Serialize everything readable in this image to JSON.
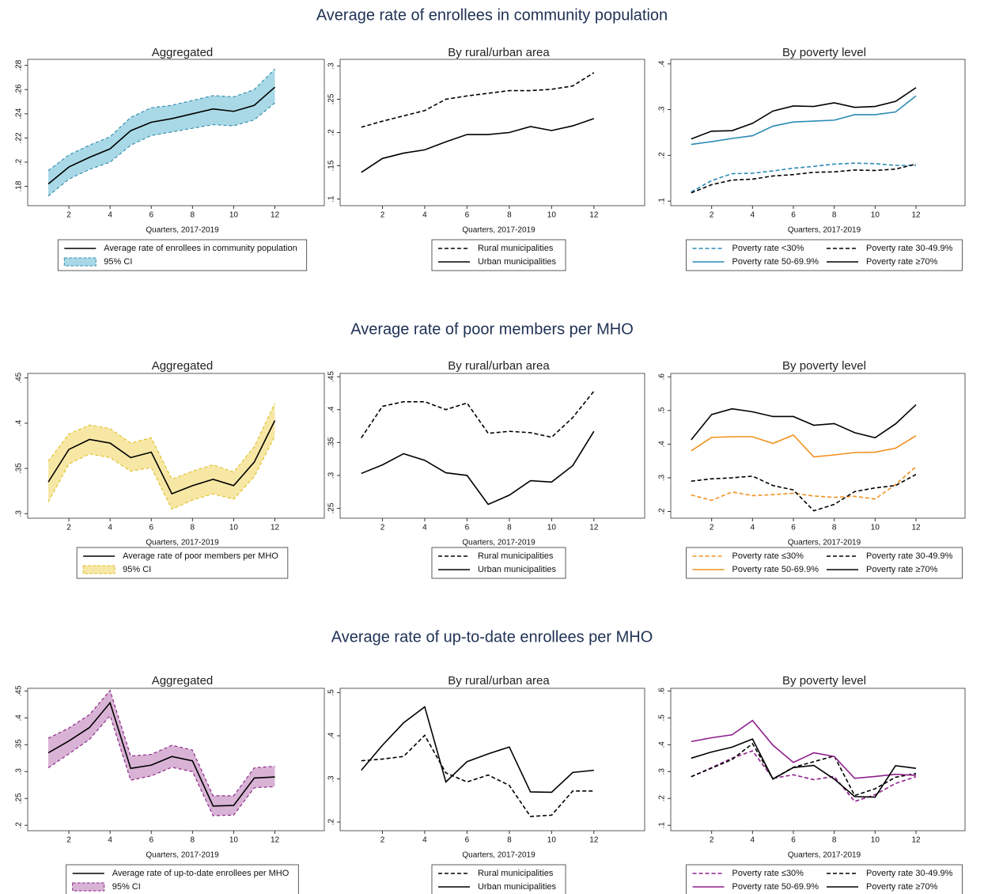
{
  "section_titles": [
    "Average rate of enrollees in community population",
    "Average rate of poor members per MHO",
    "Average rate of up-to-date enrollees per MHO"
  ],
  "chart_data": [
    {
      "type": "line",
      "title": "Aggregated",
      "xlabel": "Quarters, 2017-2019",
      "x": [
        1,
        2,
        3,
        4,
        5,
        6,
        7,
        8,
        9,
        10,
        11,
        12
      ],
      "xlim": [
        0,
        14.4
      ],
      "xticks": [
        2,
        4,
        6,
        8,
        10,
        12
      ],
      "ylim": [
        0.164,
        0.285
      ],
      "yticks": [
        {
          "value": 0.18,
          "label": ".18"
        },
        {
          "value": 0.2,
          "label": ".2"
        },
        {
          "value": 0.22,
          "label": ".22"
        },
        {
          "value": 0.24,
          "label": ".24"
        },
        {
          "value": 0.26,
          "label": ".26"
        },
        {
          "value": 0.28,
          "label": ".28"
        }
      ],
      "grid": false,
      "legend": "bottom",
      "series": [
        {
          "name": "Average rate of enrollees in community population",
          "color": "#000000",
          "dash": false,
          "values": [
            0.182,
            0.196,
            0.204,
            0.211,
            0.226,
            0.233,
            0.236,
            0.24,
            0.244,
            0.242,
            0.247,
            0.262
          ]
        },
        {
          "name": "95% CI",
          "type": "band",
          "color": "#a9d9e6",
          "edge_color": "#3a8fb0",
          "lower": [
            0.172,
            0.186,
            0.194,
            0.2,
            0.214,
            0.222,
            0.225,
            0.228,
            0.231,
            0.23,
            0.235,
            0.249
          ],
          "upper": [
            0.193,
            0.206,
            0.214,
            0.221,
            0.237,
            0.245,
            0.247,
            0.251,
            0.255,
            0.254,
            0.26,
            0.277
          ]
        }
      ]
    },
    {
      "type": "line",
      "title": "By rural/urban area",
      "xlabel": "Quarters, 2017-2019",
      "x": [
        1,
        2,
        3,
        4,
        5,
        6,
        7,
        8,
        9,
        10,
        11,
        12
      ],
      "xlim": [
        0,
        14.4
      ],
      "xticks": [
        2,
        4,
        6,
        8,
        10,
        12
      ],
      "ylim": [
        0.09,
        0.31
      ],
      "yticks": [
        {
          "value": 0.1,
          "label": ".1"
        },
        {
          "value": 0.15,
          "label": ".15"
        },
        {
          "value": 0.2,
          "label": ".2"
        },
        {
          "value": 0.25,
          "label": ".25"
        },
        {
          "value": 0.3,
          "label": ".3"
        }
      ],
      "grid": false,
      "legend": "bottom",
      "series": [
        {
          "name": "Rural municipalities",
          "color": "#000000",
          "dash": true,
          "values": [
            0.208,
            0.217,
            0.225,
            0.233,
            0.25,
            0.255,
            0.259,
            0.263,
            0.263,
            0.265,
            0.27,
            0.29
          ]
        },
        {
          "name": "Urban municipalities",
          "color": "#000000",
          "dash": false,
          "values": [
            0.14,
            0.161,
            0.169,
            0.174,
            0.186,
            0.197,
            0.197,
            0.2,
            0.209,
            0.203,
            0.21,
            0.221
          ]
        }
      ]
    },
    {
      "type": "line",
      "title": "By poverty level",
      "xlabel": "Quarters, 2017-2019",
      "x": [
        1,
        2,
        3,
        4,
        5,
        6,
        7,
        8,
        9,
        10,
        11,
        12
      ],
      "xlim": [
        0,
        14.4
      ],
      "xticks": [
        2,
        4,
        6,
        8,
        10,
        12
      ],
      "ylim": [
        0.09,
        0.41
      ],
      "yticks": [
        {
          "value": 0.1,
          "label": ".1"
        },
        {
          "value": 0.2,
          "label": ".2"
        },
        {
          "value": 0.3,
          "label": ".3"
        },
        {
          "value": 0.4,
          "label": ".4"
        }
      ],
      "grid": false,
      "legend": "bottom",
      "series": [
        {
          "name": "Poverty rate <30%",
          "color": "#2a8ab5",
          "dash": true,
          "values": [
            0.12,
            0.145,
            0.16,
            0.161,
            0.166,
            0.172,
            0.176,
            0.181,
            0.183,
            0.182,
            0.178,
            0.178
          ]
        },
        {
          "name": "Poverty rate 30-49.9%",
          "color": "#000000",
          "dash": true,
          "values": [
            0.118,
            0.136,
            0.146,
            0.148,
            0.155,
            0.158,
            0.163,
            0.164,
            0.168,
            0.167,
            0.17,
            0.181
          ]
        },
        {
          "name": "Poverty rate 50-69.9%",
          "color": "#2a8ab5",
          "dash": false,
          "values": [
            0.224,
            0.23,
            0.237,
            0.243,
            0.264,
            0.273,
            0.275,
            0.277,
            0.289,
            0.289,
            0.295,
            0.33
          ]
        },
        {
          "name": "Poverty rate ≥70%",
          "color": "#000000",
          "dash": false,
          "values": [
            0.236,
            0.253,
            0.254,
            0.27,
            0.297,
            0.308,
            0.307,
            0.315,
            0.305,
            0.307,
            0.318,
            0.348
          ]
        }
      ]
    },
    {
      "type": "line",
      "title": "Aggregated",
      "xlabel": "Quarters, 2017-2019",
      "x": [
        1,
        2,
        3,
        4,
        5,
        6,
        7,
        8,
        9,
        10,
        11,
        12
      ],
      "xlim": [
        0,
        14.4
      ],
      "xticks": [
        2,
        4,
        6,
        8,
        10,
        12
      ],
      "ylim": [
        0.295,
        0.455
      ],
      "yticks": [
        {
          "value": 0.3,
          "label": ".3"
        },
        {
          "value": 0.35,
          "label": ".35"
        },
        {
          "value": 0.4,
          "label": ".4"
        },
        {
          "value": 0.45,
          "label": ".45"
        }
      ],
      "grid": false,
      "legend": "bottom",
      "series": [
        {
          "name": "Average rate of poor members per MHO",
          "color": "#000000",
          "dash": false,
          "values": [
            0.335,
            0.371,
            0.382,
            0.378,
            0.362,
            0.368,
            0.322,
            0.331,
            0.338,
            0.331,
            0.357,
            0.403
          ]
        },
        {
          "name": "95% CI",
          "type": "band",
          "color": "#f7e7a5",
          "edge_color": "#e0c22e",
          "lower": [
            0.313,
            0.355,
            0.366,
            0.362,
            0.347,
            0.351,
            0.305,
            0.315,
            0.322,
            0.316,
            0.341,
            0.386
          ],
          "upper": [
            0.358,
            0.388,
            0.398,
            0.394,
            0.378,
            0.384,
            0.338,
            0.347,
            0.354,
            0.346,
            0.374,
            0.422
          ]
        }
      ]
    },
    {
      "type": "line",
      "title": "By rural/urban area",
      "xlabel": "Quarters, 2017-2019",
      "x": [
        1,
        2,
        3,
        4,
        5,
        6,
        7,
        8,
        9,
        10,
        11,
        12
      ],
      "xlim": [
        0,
        14.4
      ],
      "xticks": [
        2,
        4,
        6,
        8,
        10,
        12
      ],
      "ylim": [
        0.235,
        0.455
      ],
      "yticks": [
        {
          "value": 0.25,
          "label": ".25"
        },
        {
          "value": 0.3,
          "label": ".3"
        },
        {
          "value": 0.35,
          "label": ".35"
        },
        {
          "value": 0.4,
          "label": ".4"
        },
        {
          "value": 0.45,
          "label": ".45"
        }
      ],
      "grid": false,
      "legend": "bottom",
      "series": [
        {
          "name": "Rural municipalities",
          "color": "#000000",
          "dash": true,
          "values": [
            0.357,
            0.405,
            0.412,
            0.412,
            0.4,
            0.41,
            0.364,
            0.367,
            0.365,
            0.358,
            0.388,
            0.428
          ]
        },
        {
          "name": "Urban municipalities",
          "color": "#000000",
          "dash": false,
          "values": [
            0.303,
            0.316,
            0.333,
            0.323,
            0.304,
            0.3,
            0.256,
            0.27,
            0.292,
            0.29,
            0.315,
            0.367
          ]
        }
      ]
    },
    {
      "type": "line",
      "title": "By poverty level",
      "xlabel": "Quarters, 2017-2019",
      "x": [
        1,
        2,
        3,
        4,
        5,
        6,
        7,
        8,
        9,
        10,
        11,
        12
      ],
      "xlim": [
        0,
        14.4
      ],
      "xticks": [
        2,
        4,
        6,
        8,
        10,
        12
      ],
      "ylim": [
        0.18,
        0.61
      ],
      "yticks": [
        {
          "value": 0.2,
          "label": ".2"
        },
        {
          "value": 0.3,
          "label": ".3"
        },
        {
          "value": 0.4,
          "label": ".4"
        },
        {
          "value": 0.5,
          "label": ".5"
        },
        {
          "value": 0.6,
          "label": ".6"
        }
      ],
      "grid": false,
      "legend": "bottom",
      "series": [
        {
          "name": "Poverty rate ≤30%",
          "color": "#f0901e",
          "dash": true,
          "values": [
            0.249,
            0.233,
            0.258,
            0.247,
            0.25,
            0.254,
            0.246,
            0.242,
            0.245,
            0.237,
            0.28,
            0.333
          ]
        },
        {
          "name": "Poverty rate 30-49.9%",
          "color": "#000000",
          "dash": true,
          "values": [
            0.29,
            0.297,
            0.3,
            0.305,
            0.277,
            0.264,
            0.202,
            0.221,
            0.259,
            0.27,
            0.277,
            0.31
          ]
        },
        {
          "name": "Poverty rate 50-69.9%",
          "color": "#f0901e",
          "dash": false,
          "values": [
            0.38,
            0.42,
            0.422,
            0.422,
            0.402,
            0.427,
            0.362,
            0.368,
            0.375,
            0.376,
            0.388,
            0.425
          ]
        },
        {
          "name": "Poverty rate ≥70%",
          "color": "#000000",
          "dash": false,
          "values": [
            0.413,
            0.488,
            0.505,
            0.496,
            0.482,
            0.482,
            0.456,
            0.461,
            0.434,
            0.419,
            0.46,
            0.517
          ]
        }
      ]
    },
    {
      "type": "line",
      "title": "Aggregated",
      "xlabel": "Quarters, 2017-2019",
      "x": [
        1,
        2,
        3,
        4,
        5,
        6,
        7,
        8,
        9,
        10,
        11,
        12
      ],
      "xlim": [
        0,
        14.4
      ],
      "xticks": [
        2,
        4,
        6,
        8,
        10,
        12
      ],
      "ylim": [
        0.19,
        0.455
      ],
      "yticks": [
        {
          "value": 0.2,
          "label": ".2"
        },
        {
          "value": 0.25,
          "label": ".25"
        },
        {
          "value": 0.3,
          "label": ".3"
        },
        {
          "value": 0.35,
          "label": ".35"
        },
        {
          "value": 0.4,
          "label": ".4"
        },
        {
          "value": 0.45,
          "label": ".45"
        }
      ],
      "grid": false,
      "legend": "bottom",
      "series": [
        {
          "name": "Average rate of up-to-date enrollees per MHO",
          "color": "#000000",
          "dash": false,
          "values": [
            0.335,
            0.357,
            0.382,
            0.428,
            0.306,
            0.312,
            0.328,
            0.32,
            0.236,
            0.237,
            0.288,
            0.29
          ]
        },
        {
          "name": "95% CI",
          "type": "band",
          "color": "#d9b3d6",
          "edge_color": "#8a2a87",
          "lower": [
            0.307,
            0.333,
            0.36,
            0.404,
            0.284,
            0.292,
            0.308,
            0.3,
            0.218,
            0.219,
            0.27,
            0.272
          ],
          "upper": [
            0.362,
            0.381,
            0.406,
            0.451,
            0.329,
            0.332,
            0.349,
            0.34,
            0.255,
            0.255,
            0.307,
            0.31
          ]
        }
      ]
    },
    {
      "type": "line",
      "title": "By rural/urban area",
      "xlabel": "Quarters, 2017-2019",
      "x": [
        1,
        2,
        3,
        4,
        5,
        6,
        7,
        8,
        9,
        10,
        11,
        12
      ],
      "xlim": [
        0,
        14.4
      ],
      "xticks": [
        2,
        4,
        6,
        8,
        10,
        12
      ],
      "ylim": [
        0.18,
        0.51
      ],
      "yticks": [
        {
          "value": 0.2,
          "label": ".2"
        },
        {
          "value": 0.3,
          "label": ".3"
        },
        {
          "value": 0.4,
          "label": ".4"
        },
        {
          "value": 0.5,
          "label": ".5"
        }
      ],
      "grid": false,
      "legend": "bottom",
      "series": [
        {
          "name": "Rural municipalities",
          "color": "#000000",
          "dash": true,
          "values": [
            0.342,
            0.346,
            0.352,
            0.401,
            0.314,
            0.293,
            0.309,
            0.285,
            0.213,
            0.216,
            0.272,
            0.272
          ]
        },
        {
          "name": "Urban municipalities",
          "color": "#000000",
          "dash": false,
          "values": [
            0.32,
            0.378,
            0.43,
            0.467,
            0.293,
            0.34,
            0.358,
            0.374,
            0.27,
            0.269,
            0.315,
            0.32
          ]
        }
      ]
    },
    {
      "type": "line",
      "title": "By poverty level",
      "xlabel": "Quarters, 2017-2019",
      "x": [
        1,
        2,
        3,
        4,
        5,
        6,
        7,
        8,
        9,
        10,
        11,
        12
      ],
      "xlim": [
        0,
        14.4
      ],
      "xticks": [
        2,
        4,
        6,
        8,
        10,
        12
      ],
      "ylim": [
        0.08,
        0.61
      ],
      "yticks": [
        {
          "value": 0.1,
          "label": ".1"
        },
        {
          "value": 0.2,
          "label": ".2"
        },
        {
          "value": 0.3,
          "label": ".3"
        },
        {
          "value": 0.4,
          "label": ".4"
        },
        {
          "value": 0.5,
          "label": ".5"
        },
        {
          "value": 0.6,
          "label": ".6"
        }
      ],
      "grid": false,
      "legend": "bottom",
      "series": [
        {
          "name": "Poverty rate ≤30%",
          "color": "#8e1f8c",
          "dash": true,
          "values": [
            0.281,
            0.315,
            0.35,
            0.377,
            0.275,
            0.288,
            0.27,
            0.282,
            0.189,
            0.214,
            0.256,
            0.281
          ]
        },
        {
          "name": "Poverty rate 30-49.9%",
          "color": "#000000",
          "dash": true,
          "values": [
            0.281,
            0.313,
            0.345,
            0.404,
            0.273,
            0.316,
            0.337,
            0.358,
            0.211,
            0.236,
            0.279,
            0.293
          ]
        },
        {
          "name": "Poverty rate 50-69.9%",
          "color": "#8e1f8c",
          "dash": false,
          "values": [
            0.412,
            0.426,
            0.437,
            0.49,
            0.398,
            0.334,
            0.37,
            0.356,
            0.275,
            0.282,
            0.29,
            0.286
          ]
        },
        {
          "name": "Poverty rate ≥70%",
          "color": "#000000",
          "dash": false,
          "values": [
            0.35,
            0.373,
            0.391,
            0.421,
            0.272,
            0.315,
            0.323,
            0.272,
            0.207,
            0.205,
            0.322,
            0.312
          ]
        }
      ]
    }
  ]
}
